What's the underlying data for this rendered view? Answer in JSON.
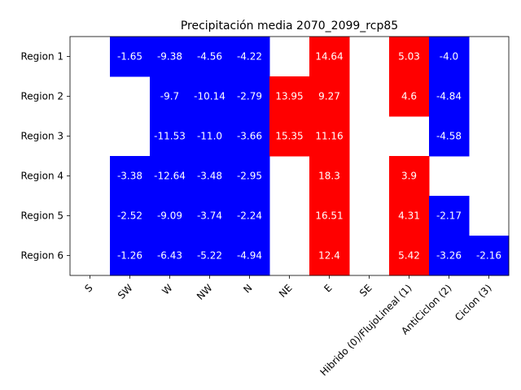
{
  "chart_data": {
    "type": "heatmap",
    "title": "Precipitación media 2070_2099_rcp85",
    "xlabel": "",
    "ylabel": "",
    "columns": [
      "S",
      "SW",
      "W",
      "NW",
      "N",
      "NE",
      "E",
      "SE",
      "Hibrido (0)/FlujoLineal (1)",
      "AntiCiclon (2)",
      "Ciclon (3)"
    ],
    "rows": [
      "Region 1",
      "Region 2",
      "Region 3",
      "Region 4",
      "Region 5",
      "Region 6"
    ],
    "values": [
      [
        null,
        -1.65,
        -9.38,
        -4.56,
        -4.22,
        null,
        14.64,
        null,
        5.03,
        -4.0,
        null
      ],
      [
        null,
        null,
        -9.7,
        -10.14,
        -2.79,
        13.95,
        9.27,
        null,
        4.6,
        -4.84,
        null
      ],
      [
        null,
        null,
        -11.53,
        -11.0,
        -3.66,
        15.35,
        11.16,
        null,
        null,
        -4.58,
        null
      ],
      [
        null,
        -3.38,
        -12.64,
        -3.48,
        -2.95,
        null,
        18.3,
        null,
        3.9,
        null,
        null
      ],
      [
        null,
        -2.52,
        -9.09,
        -3.74,
        -2.24,
        null,
        16.51,
        null,
        4.31,
        -2.17,
        null
      ],
      [
        null,
        -1.26,
        -6.43,
        -5.22,
        -4.94,
        null,
        12.4,
        null,
        5.42,
        -3.26,
        -2.16
      ]
    ],
    "value_labels": [
      [
        null,
        "-1.65",
        "-9.38",
        "-4.56",
        "-4.22",
        null,
        "14.64",
        null,
        "5.03",
        "-4.0",
        null
      ],
      [
        null,
        null,
        "-9.7",
        "-10.14",
        "-2.79",
        "13.95",
        "9.27",
        null,
        "4.6",
        "-4.84",
        null
      ],
      [
        null,
        null,
        "-11.53",
        "-11.0",
        "-3.66",
        "15.35",
        "11.16",
        null,
        null,
        "-4.58",
        null
      ],
      [
        null,
        "-3.38",
        "-12.64",
        "-3.48",
        "-2.95",
        null,
        "18.3",
        null,
        "3.9",
        null,
        null
      ],
      [
        null,
        "-2.52",
        "-9.09",
        "-3.74",
        "-2.24",
        null,
        "16.51",
        null,
        "4.31",
        "-2.17",
        null
      ],
      [
        null,
        "-1.26",
        "-6.43",
        "-5.22",
        "-4.94",
        null,
        "12.4",
        null,
        "5.42",
        "-3.26",
        "-2.16"
      ]
    ],
    "colors": {
      "positive": "#ff0000",
      "negative": "#0000ff",
      "empty": "#ffffff",
      "text": "#ffffff"
    },
    "grid": false,
    "legend": "none"
  }
}
